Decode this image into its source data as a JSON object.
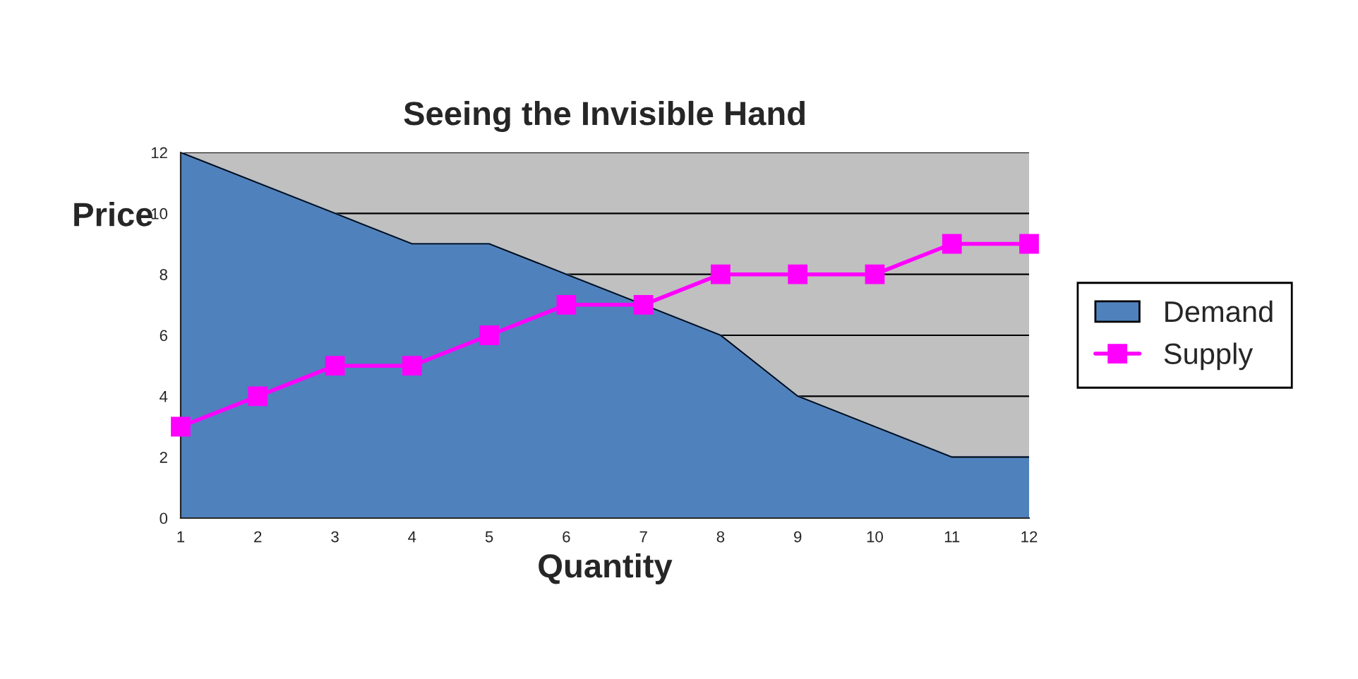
{
  "chart_data": {
    "type": "area",
    "title": "Seeing the Invisible Hand",
    "xlabel": "Quantity",
    "ylabel": "Price",
    "x": [
      1,
      2,
      3,
      4,
      5,
      6,
      7,
      8,
      9,
      10,
      11,
      12
    ],
    "series": [
      {
        "name": "Demand",
        "color": "#4f81bd",
        "values": [
          12,
          11,
          10,
          9,
          9,
          8,
          7,
          6,
          4,
          3,
          2,
          2
        ]
      },
      {
        "name": "Supply",
        "type": "line",
        "color": "#ff00ff",
        "marker": "square",
        "values": [
          3,
          4,
          5,
          5,
          6,
          7,
          7,
          8,
          8,
          8,
          9,
          9
        ]
      }
    ],
    "xlim": [
      1,
      12
    ],
    "xticks": [
      1,
      2,
      3,
      4,
      5,
      6,
      7,
      8,
      9,
      10,
      11,
      12
    ],
    "ylim": [
      0,
      12
    ],
    "yticks": [
      0,
      2,
      4,
      6,
      8,
      10,
      12
    ],
    "grid": "y",
    "legend": "right"
  }
}
